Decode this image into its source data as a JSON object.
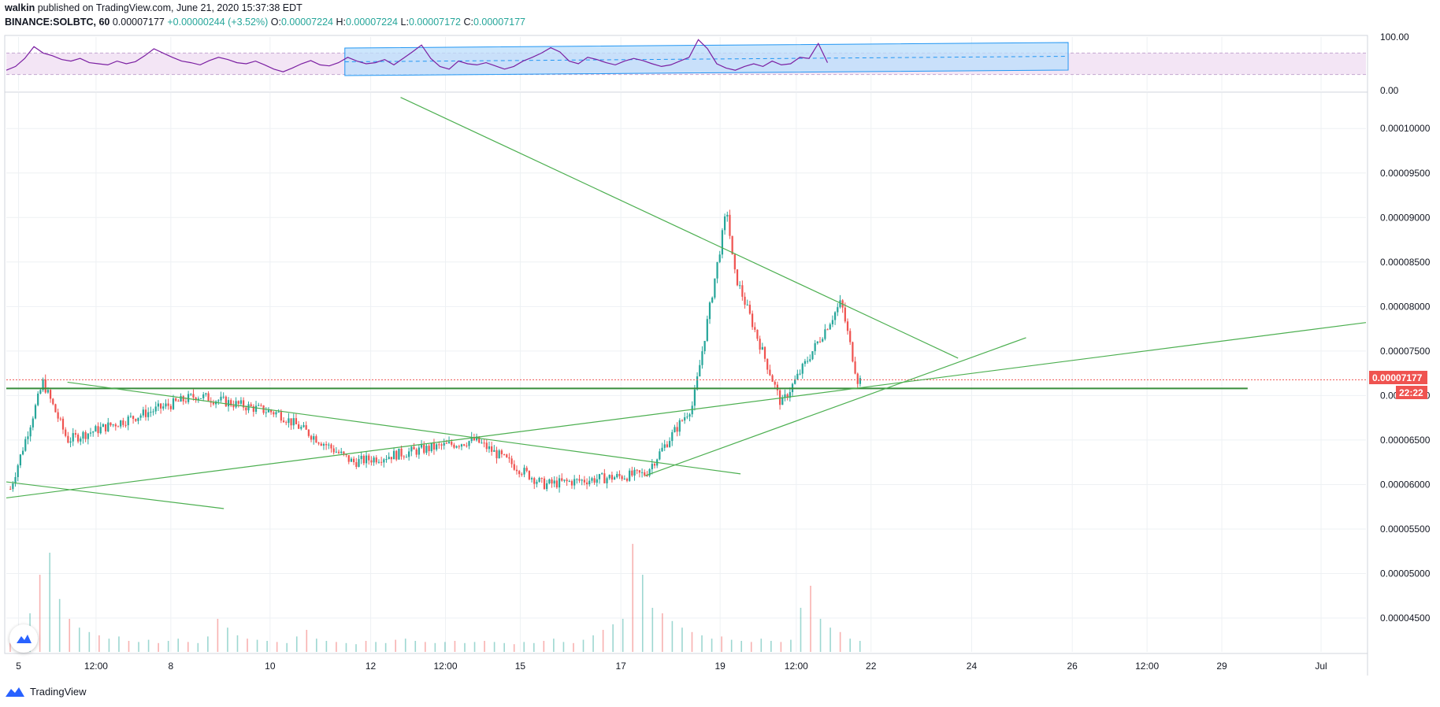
{
  "header": {
    "author": "walkin",
    "published_text": "published on TradingView.com, June 21, 2020 15:37:38 EDT",
    "symbol": "BINANCE:SOLBTC, 60",
    "last_price": "0.00007177",
    "change": "+0.00000244 (+3.52%)",
    "o_label": "O:",
    "o_value": "0.00007224",
    "h_label": "H:",
    "h_value": "0.00007224",
    "l_label": "L:",
    "l_value": "0.00007172",
    "c_label": "C:",
    "c_value": "0.00007177"
  },
  "footer": {
    "brand": "TradingView"
  },
  "colors": {
    "up": "#26a69a",
    "down": "#ef5350",
    "rsi_line": "#7b1fa2",
    "rsi_band": "#f3e5f5",
    "channel_fill": "#bbdefb",
    "trend_line": "#4caf50",
    "price_tag": "#ef5350",
    "grid": "#eef1f4"
  },
  "chart_data": [
    {
      "type": "line",
      "name": "RSI",
      "ylim": [
        0,
        100
      ],
      "y_ticks": [
        "100.00",
        "0.00"
      ],
      "band": [
        30,
        70
      ],
      "values": [
        38,
        45,
        60,
        82,
        70,
        65,
        58,
        55,
        60,
        52,
        50,
        48,
        55,
        50,
        54,
        65,
        78,
        70,
        62,
        55,
        52,
        48,
        56,
        62,
        58,
        52,
        50,
        55,
        48,
        40,
        35,
        42,
        50,
        56,
        48,
        46,
        52,
        62,
        55,
        50,
        52,
        58,
        48,
        60,
        72,
        85,
        60,
        45,
        40,
        55,
        50,
        48,
        52,
        46,
        40,
        45,
        55,
        62,
        70,
        80,
        72,
        55,
        50,
        62,
        58,
        52,
        48,
        55,
        60,
        56,
        50,
        45,
        48,
        55,
        62,
        95,
        78,
        50,
        42,
        38,
        45,
        50,
        45,
        55,
        48,
        50,
        62,
        60,
        88,
        52
      ]
    },
    {
      "type": "candlestick",
      "name": "BINANCE:SOLBTC, 60",
      "ylim": [
        4.12e-05,
        0.000104
      ],
      "y_ticks": [
        "0.00010000",
        "0.00009500",
        "0.00009000",
        "0.00008500",
        "0.00008000",
        "0.00007500",
        "0.00007000",
        "0.00006500",
        "0.00006000",
        "0.00005500",
        "0.00005000",
        "0.00004500"
      ],
      "x_ticks": [
        "5",
        "12:00",
        "8",
        "10",
        "12",
        "12:00",
        "15",
        "17",
        "19",
        "12:00",
        "22",
        "24",
        "26",
        "12:00",
        "29",
        "Jul"
      ],
      "last_price_label": "0.00007177",
      "countdown": "22:22",
      "key_prices": [
        {
          "date": "Jun 5",
          "close": 5.95e-05
        },
        {
          "date": "Jun 5 peak",
          "close": 7.15e-05
        },
        {
          "date": "Jun 6",
          "close": 6.5e-05
        },
        {
          "date": "Jun 8",
          "close": 7e-05
        },
        {
          "date": "Jun 10",
          "close": 6.8e-05
        },
        {
          "date": "Jun 12",
          "close": 6.25e-05
        },
        {
          "date": "Jun 13",
          "close": 6.5e-05
        },
        {
          "date": "Jun 15",
          "close": 6e-05
        },
        {
          "date": "Jun 17",
          "close": 6.12e-05
        },
        {
          "date": "Jun 18",
          "close": 6.9e-05
        },
        {
          "date": "Jun 19 high",
          "close": 9.1e-05
        },
        {
          "date": "Jun 19",
          "close": 8.4e-05
        },
        {
          "date": "Jun 20",
          "close": 6.9e-05
        },
        {
          "date": "Jun 21 high",
          "close": 8.05e-05
        },
        {
          "date": "Jun 21",
          "close": 7.177e-05
        }
      ],
      "horizontal_levels": [
        7.177e-05,
        7.08e-05
      ],
      "trend_lines": [
        {
          "from": [
            0.0,
            6.03e-05
          ],
          "to": [
            0.16,
            5.73e-05
          ]
        },
        {
          "from": [
            0.0,
            5.85e-05
          ],
          "to": [
            1.0,
            7.82e-05
          ]
        },
        {
          "from": [
            0.045,
            7.15e-05
          ],
          "to": [
            0.54,
            6.12e-05
          ]
        },
        {
          "from": [
            0.29,
            0.0001035
          ],
          "to": [
            0.7,
            7.42e-05
          ]
        },
        {
          "from": [
            0.47,
            6.1e-05
          ],
          "to": [
            0.75,
            7.65e-05
          ]
        }
      ]
    },
    {
      "type": "bar",
      "name": "Volume",
      "ylim": [
        0,
        100
      ],
      "values": [
        8,
        12,
        35,
        70,
        90,
        48,
        30,
        22,
        18,
        15,
        12,
        14,
        10,
        9,
        11,
        8,
        10,
        12,
        9,
        8,
        14,
        30,
        22,
        15,
        12,
        11,
        10,
        9,
        8,
        14,
        20,
        12,
        10,
        9,
        8,
        7,
        10,
        9,
        8,
        11,
        12,
        10,
        9,
        8,
        9,
        10,
        8,
        9,
        10,
        9,
        8,
        7,
        9,
        8,
        10,
        12,
        9,
        8,
        11,
        15,
        20,
        25,
        30,
        98,
        70,
        40,
        35,
        28,
        22,
        18,
        15,
        12,
        14,
        11,
        10,
        9,
        12,
        10,
        9,
        11,
        40,
        60,
        30,
        22,
        18,
        12,
        10
      ]
    }
  ]
}
